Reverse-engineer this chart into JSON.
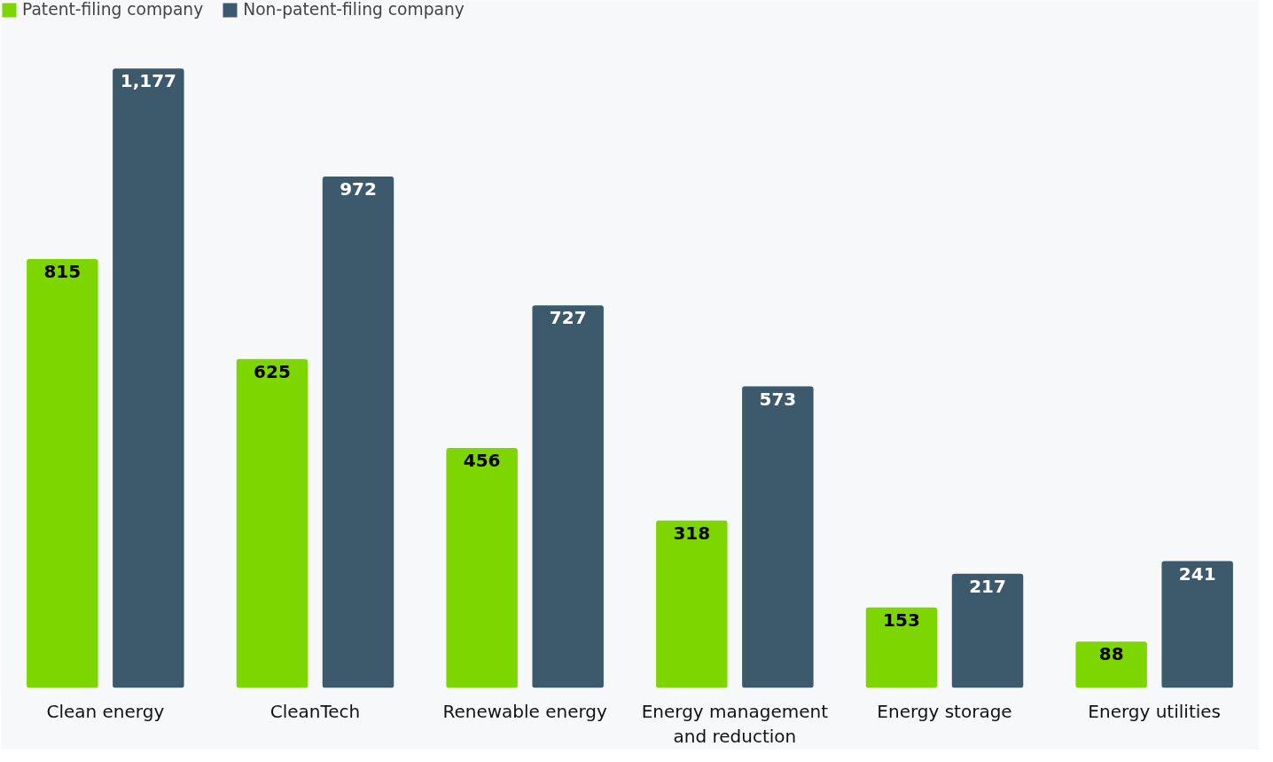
{
  "chart_data": {
    "type": "bar",
    "categories": [
      "Clean energy",
      "CleanTech",
      "Renewable energy",
      "Energy management and reduction",
      "Energy storage",
      "Energy utilities"
    ],
    "series": [
      {
        "name": "Patent-filing company",
        "color": "#7ed600",
        "values": [
          815,
          625,
          456,
          318,
          153,
          88
        ],
        "value_labels": [
          "815",
          "625",
          "456",
          "318",
          "153",
          "88"
        ]
      },
      {
        "name": "Non-patent-filing company",
        "color": "#3d5a6c",
        "values": [
          1177,
          972,
          727,
          573,
          217,
          241
        ],
        "value_labels": [
          "1,177",
          "972",
          "727",
          "573",
          "217",
          "241"
        ]
      }
    ],
    "legend": "top left",
    "grid": false
  }
}
